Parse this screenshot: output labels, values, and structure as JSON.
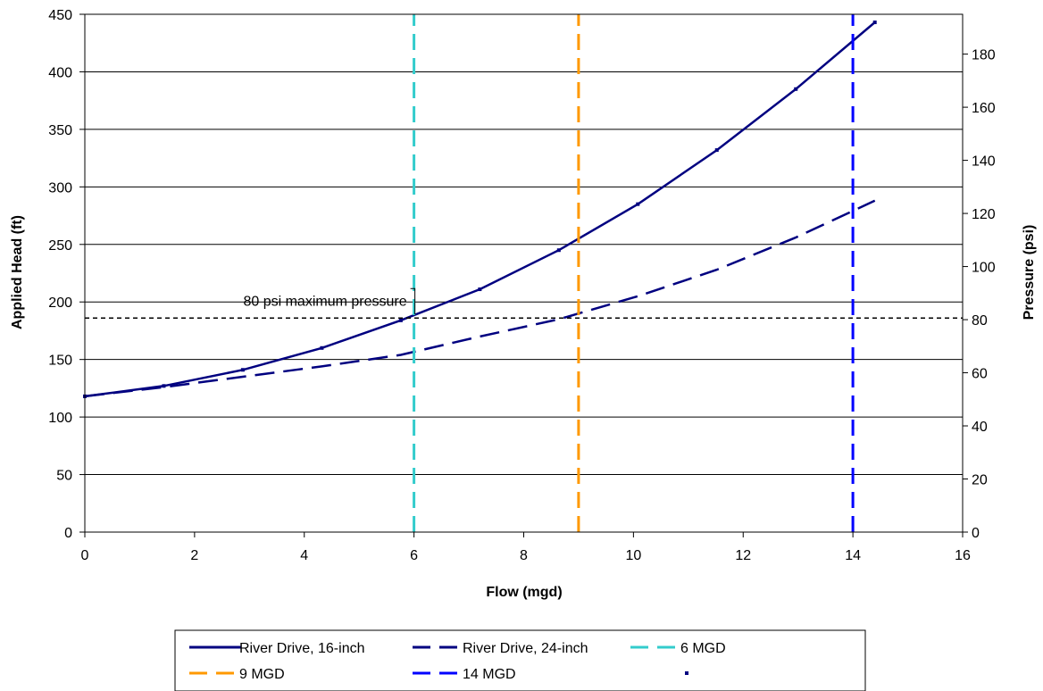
{
  "chart_data": {
    "type": "line",
    "title": "",
    "xlabel": "Flow (mgd)",
    "ylabel": "Applied Head (ft)",
    "y2label": "Pressure (psi)",
    "xlim": [
      0,
      16
    ],
    "ylim": [
      0,
      450
    ],
    "y2lim": [
      0,
      195
    ],
    "xticks": [
      "0",
      "2",
      "4",
      "6",
      "8",
      "10",
      "12",
      "14",
      "16"
    ],
    "yticks": [
      "0",
      "50",
      "100",
      "150",
      "200",
      "250",
      "300",
      "350",
      "400",
      "450"
    ],
    "y2ticks": [
      "0",
      "20",
      "40",
      "60",
      "80",
      "100",
      "120",
      "140",
      "160",
      "180"
    ],
    "grid": "horizontal",
    "legend_position": "bottom",
    "series": [
      {
        "name": "River Drive, 16-inch",
        "style": "solid",
        "color": "#000080",
        "x": [
          0,
          1.44,
          2.88,
          4.32,
          5.76,
          7.2,
          8.64,
          10.08,
          11.52,
          12.96,
          14.4
        ],
        "y": [
          118,
          127,
          141,
          160,
          184,
          211,
          245,
          285,
          332,
          385,
          443
        ]
      },
      {
        "name": "River Drive, 24-inch",
        "style": "dashed",
        "color": "#000080",
        "x": [
          0,
          1.44,
          2.88,
          4.32,
          5.76,
          7.2,
          8.64,
          10.08,
          11.52,
          12.96,
          14.4
        ],
        "y": [
          118,
          126,
          135,
          144,
          154,
          170,
          185,
          205,
          228,
          256,
          288
        ]
      },
      {
        "name": "6 MGD",
        "style": "dashed",
        "color": "#33CCCC",
        "x": [
          6,
          6
        ],
        "y": [
          0,
          450
        ]
      },
      {
        "name": "9 MGD",
        "style": "dashed",
        "color": "#FF9900",
        "x": [
          9,
          9
        ],
        "y": [
          0,
          450
        ]
      },
      {
        "name": "14 MGD",
        "style": "dashed",
        "color": "#0000FF",
        "x": [
          14,
          14
        ],
        "y": [
          0,
          450
        ]
      },
      {
        "name": "",
        "style": "dotted",
        "color": "#000000",
        "x": [
          0,
          16
        ],
        "y": [
          186,
          186
        ]
      }
    ],
    "annotations": [
      {
        "text": "80 psi maximum pressure",
        "x": 6,
        "y": 186
      }
    ]
  }
}
